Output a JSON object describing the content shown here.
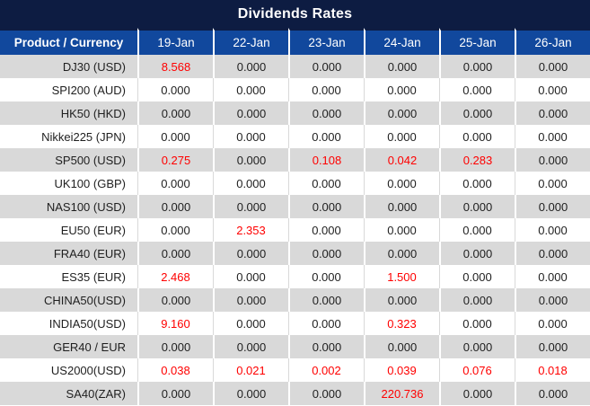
{
  "title": "Dividends Rates",
  "header": {
    "product_column": "Product / Currency",
    "date_columns": [
      "19-Jan",
      "22-Jan",
      "23-Jan",
      "24-Jan",
      "25-Jan",
      "26-Jan"
    ]
  },
  "chart_data": {
    "type": "table",
    "title": "Dividends Rates",
    "columns": [
      "Product / Currency",
      "19-Jan",
      "22-Jan",
      "23-Jan",
      "24-Jan",
      "25-Jan",
      "26-Jan"
    ],
    "rows": [
      {
        "product": "DJ30 (USD)",
        "values": [
          "8.568",
          "0.000",
          "0.000",
          "0.000",
          "0.000",
          "0.000"
        ],
        "red": [
          1,
          0,
          0,
          0,
          0,
          0
        ]
      },
      {
        "product": "SPI200 (AUD)",
        "values": [
          "0.000",
          "0.000",
          "0.000",
          "0.000",
          "0.000",
          "0.000"
        ],
        "red": [
          0,
          0,
          0,
          0,
          0,
          0
        ]
      },
      {
        "product": "HK50 (HKD)",
        "values": [
          "0.000",
          "0.000",
          "0.000",
          "0.000",
          "0.000",
          "0.000"
        ],
        "red": [
          0,
          0,
          0,
          0,
          0,
          0
        ]
      },
      {
        "product": "Nikkei225 (JPN)",
        "values": [
          "0.000",
          "0.000",
          "0.000",
          "0.000",
          "0.000",
          "0.000"
        ],
        "red": [
          0,
          0,
          0,
          0,
          0,
          0
        ]
      },
      {
        "product": "SP500 (USD)",
        "values": [
          "0.275",
          "0.000",
          "0.108",
          "0.042",
          "0.283",
          "0.000"
        ],
        "red": [
          1,
          0,
          1,
          1,
          1,
          0
        ]
      },
      {
        "product": "UK100 (GBP)",
        "values": [
          "0.000",
          "0.000",
          "0.000",
          "0.000",
          "0.000",
          "0.000"
        ],
        "red": [
          0,
          0,
          0,
          0,
          0,
          0
        ]
      },
      {
        "product": "NAS100 (USD)",
        "values": [
          "0.000",
          "0.000",
          "0.000",
          "0.000",
          "0.000",
          "0.000"
        ],
        "red": [
          0,
          0,
          0,
          0,
          0,
          0
        ]
      },
      {
        "product": "EU50 (EUR)",
        "values": [
          "0.000",
          "2.353",
          "0.000",
          "0.000",
          "0.000",
          "0.000"
        ],
        "red": [
          0,
          1,
          0,
          0,
          0,
          0
        ]
      },
      {
        "product": "FRA40 (EUR)",
        "values": [
          "0.000",
          "0.000",
          "0.000",
          "0.000",
          "0.000",
          "0.000"
        ],
        "red": [
          0,
          0,
          0,
          0,
          0,
          0
        ]
      },
      {
        "product": "ES35 (EUR)",
        "values": [
          "2.468",
          "0.000",
          "0.000",
          "1.500",
          "0.000",
          "0.000"
        ],
        "red": [
          1,
          0,
          0,
          1,
          0,
          0
        ]
      },
      {
        "product": "CHINA50(USD)",
        "values": [
          "0.000",
          "0.000",
          "0.000",
          "0.000",
          "0.000",
          "0.000"
        ],
        "red": [
          0,
          0,
          0,
          0,
          0,
          0
        ]
      },
      {
        "product": "INDIA50(USD)",
        "values": [
          "9.160",
          "0.000",
          "0.000",
          "0.323",
          "0.000",
          "0.000"
        ],
        "red": [
          1,
          0,
          0,
          1,
          0,
          0
        ]
      },
      {
        "product": "GER40 / EUR",
        "values": [
          "0.000",
          "0.000",
          "0.000",
          "0.000",
          "0.000",
          "0.000"
        ],
        "red": [
          0,
          0,
          0,
          0,
          0,
          0
        ]
      },
      {
        "product": "US2000(USD)",
        "values": [
          "0.038",
          "0.021",
          "0.002",
          "0.039",
          "0.076",
          "0.018"
        ],
        "red": [
          1,
          1,
          1,
          1,
          1,
          1
        ]
      },
      {
        "product": "SA40(ZAR)",
        "values": [
          "0.000",
          "0.000",
          "0.000",
          "220.736",
          "0.000",
          "0.000"
        ],
        "red": [
          0,
          0,
          0,
          1,
          0,
          0
        ]
      }
    ]
  },
  "colors": {
    "navy": "#0d1c42",
    "blue": "#11489d",
    "stripe": "#d9d9d9",
    "red": "#ff0000",
    "text": "#1f1f1f",
    "white": "#ffffff"
  }
}
